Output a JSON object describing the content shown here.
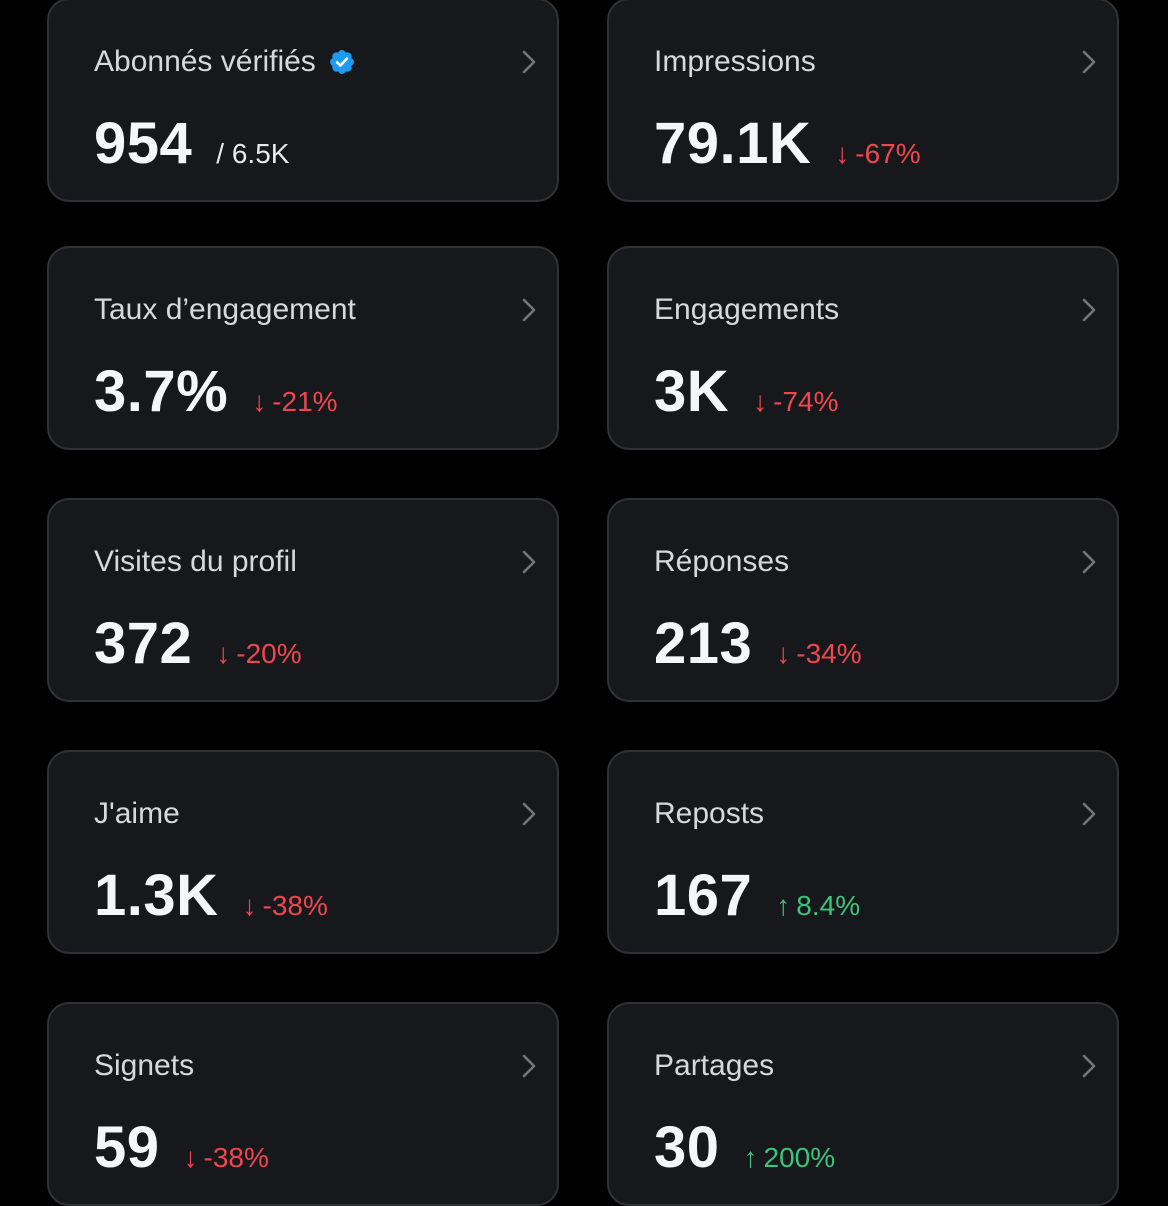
{
  "colors": {
    "background": "#000000",
    "card": "#16181c",
    "border": "#2f3336",
    "negative": "#f0464f",
    "positive": "#3cc47c",
    "verified": "#1d9bf0"
  },
  "cards": [
    {
      "label": "Abonnés vérifiés",
      "value": "954",
      "sub": "/ 6.5K",
      "verified": true
    },
    {
      "label": "Impressions",
      "value": "79.1K",
      "direction": "down",
      "arrow": "↓",
      "change": "-67%"
    },
    {
      "label": "Taux d’engagement",
      "value": "3.7%",
      "direction": "down",
      "arrow": "↓",
      "change": "-21%"
    },
    {
      "label": "Engagements",
      "value": "3K",
      "direction": "down",
      "arrow": "↓",
      "change": "-74%"
    },
    {
      "label": "Visites du profil",
      "value": "372",
      "direction": "down",
      "arrow": "↓",
      "change": "-20%"
    },
    {
      "label": "Réponses",
      "value": "213",
      "direction": "down",
      "arrow": "↓",
      "change": "-34%"
    },
    {
      "label": "J'aime",
      "value": "1.3K",
      "direction": "down",
      "arrow": "↓",
      "change": "-38%"
    },
    {
      "label": "Reposts",
      "value": "167",
      "direction": "up",
      "arrow": "↑",
      "change": "8.4%"
    },
    {
      "label": "Signets",
      "value": "59",
      "direction": "down",
      "arrow": "↓",
      "change": "-38%"
    },
    {
      "label": "Partages",
      "value": "30",
      "direction": "up",
      "arrow": "↑",
      "change": "200%"
    }
  ]
}
